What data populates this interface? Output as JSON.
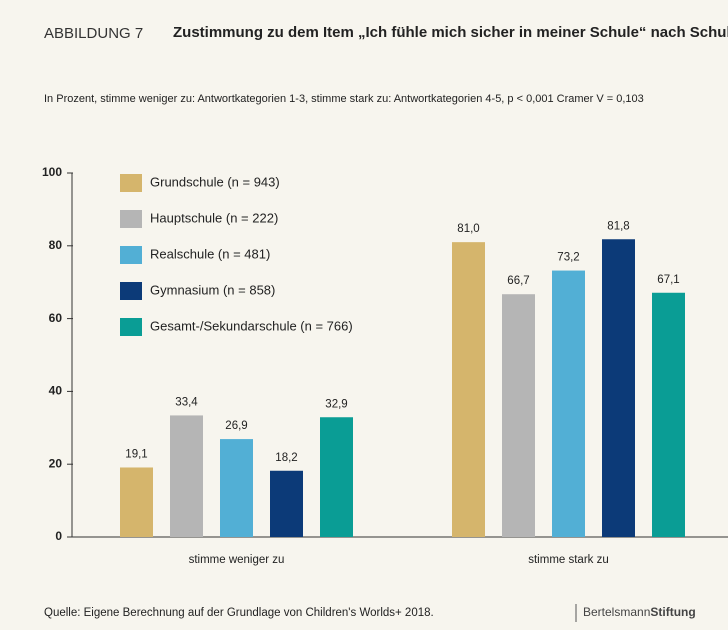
{
  "chart_data": {
    "type": "bar",
    "label": "ABBILDUNG 7",
    "title": "Zustimmung zu dem Item „Ich fühle mich sicher in meiner Schule“ nach Schultyp",
    "subtitle": "In Prozent, stimme weniger zu: Antwortkategorien 1-3, stimme stark zu: Antwortkategorien 4-5, p < 0,001 Cramer V = 0,103",
    "categories": [
      "stimme weniger zu",
      "stimme stark zu"
    ],
    "series": [
      {
        "name": "Grundschule (n = 943)",
        "color": "#d5b56c",
        "values": [
          19.1,
          81.0
        ],
        "value_labels": [
          "19,1",
          "81,0"
        ]
      },
      {
        "name": "Hauptschule (n = 222)",
        "color": "#b5b5b5",
        "values": [
          33.4,
          66.7
        ],
        "value_labels": [
          "33,4",
          "66,7"
        ]
      },
      {
        "name": "Realschule (n = 481)",
        "color": "#52afd5",
        "values": [
          26.9,
          73.2
        ],
        "value_labels": [
          "26,9",
          "73,2"
        ]
      },
      {
        "name": "Gymnasium (n = 858)",
        "color": "#0c3a78",
        "values": [
          18.2,
          81.8
        ],
        "value_labels": [
          "18,2",
          "81,8"
        ]
      },
      {
        "name": "Gesamt-/Sekundarschule (n = 766)",
        "color": "#0a9d95",
        "values": [
          32.9,
          67.1
        ],
        "value_labels": [
          "32,9",
          "67,1"
        ]
      }
    ],
    "ylim": [
      0,
      100
    ],
    "yticks": [
      0,
      20,
      40,
      60,
      80,
      100
    ],
    "legend": "upper left",
    "source": "Quelle: Eigene Berechnung auf der Grundlage von Children's Worlds+ 2018.",
    "logo": [
      "Bertelsmann",
      "Stiftung"
    ]
  }
}
